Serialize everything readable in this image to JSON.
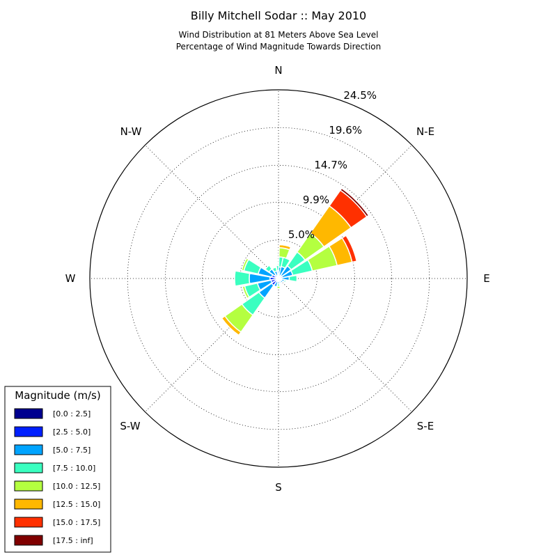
{
  "chart_data": {
    "type": "windrose",
    "title": "Billy Mitchell Sodar :: May 2010",
    "subtitle_lines": [
      "Wind Distribution at 81 Meters Above Sea Level",
      "Percentage of Wind Magnitude Towards Direction"
    ],
    "directions": [
      "N",
      "N-E",
      "E",
      "S-E",
      "S",
      "S-W",
      "W",
      "N-W"
    ],
    "radial_ticks": [
      {
        "value": 5.0,
        "label": "5.0%"
      },
      {
        "value": 9.9,
        "label": "9.9%"
      },
      {
        "value": 14.7,
        "label": "14.7%"
      },
      {
        "value": 19.6,
        "label": "19.6%"
      },
      {
        "value": 24.5,
        "label": "24.5%"
      }
    ],
    "rmax": 24.5,
    "grid": true,
    "legend": {
      "title": "Magnitude (m/s)",
      "placement": "bottom-left",
      "entries": [
        {
          "label": "[0.0 : 2.5]",
          "color": "#00008f"
        },
        {
          "label": "[2.5 : 5.0]",
          "color": "#0020ff"
        },
        {
          "label": "[5.0 : 7.5]",
          "color": "#00a4ff"
        },
        {
          "label": "[7.5 : 10.0]",
          "color": "#3affc0"
        },
        {
          "label": "[10.0 : 12.5]",
          "color": "#b4ff40"
        },
        {
          "label": "[12.5 : 15.0]",
          "color": "#ffb800"
        },
        {
          "label": "[15.0 : 17.5]",
          "color": "#ff3000"
        },
        {
          "label": "[17.5 : inf]",
          "color": "#800000"
        }
      ]
    },
    "sector_width_deg": 20,
    "series": [
      {
        "direction_deg": 0,
        "values": [
          0.1,
          0.2,
          0.7,
          0.7,
          0,
          0,
          0,
          0
        ]
      },
      {
        "direction_deg": 11.25,
        "values": [
          0.1,
          0.3,
          1.1,
          1.3,
          1.2,
          0.4,
          0.1,
          0
        ]
      },
      {
        "direction_deg": 22.5,
        "values": [
          0.1,
          0.2,
          1.3,
          1.2,
          0,
          0,
          0,
          0
        ]
      },
      {
        "direction_deg": 45,
        "values": [
          0.1,
          0.4,
          1.5,
          2.2,
          3.0,
          4.3,
          2.5,
          0.3
        ]
      },
      {
        "direction_deg": 67.5,
        "values": [
          0.1,
          0.4,
          1.4,
          2.6,
          3.3,
          2.0,
          0.6,
          0
        ]
      },
      {
        "direction_deg": 90,
        "values": [
          0.1,
          0.3,
          1.0,
          1.0,
          0,
          0,
          0,
          0
        ]
      },
      {
        "direction_deg": 112.5,
        "values": [
          0.2,
          0.2,
          0.4,
          0.2,
          0,
          0,
          0,
          0
        ]
      },
      {
        "direction_deg": 135,
        "values": [
          0.1,
          0.3,
          0.3,
          0,
          0,
          0,
          0,
          0
        ]
      },
      {
        "direction_deg": 157.5,
        "values": [
          0.1,
          0.2,
          0.3,
          0,
          0,
          0,
          0,
          0
        ]
      },
      {
        "direction_deg": 180,
        "values": [
          0.1,
          0.2,
          0.4,
          0.3,
          0.3,
          0,
          0,
          0
        ]
      },
      {
        "direction_deg": 202.5,
        "values": [
          0.1,
          0.3,
          0.7,
          0,
          0,
          0,
          0,
          0
        ]
      },
      {
        "direction_deg": 225,
        "values": [
          0.2,
          0.9,
          2.0,
          2.7,
          2.7,
          0.5,
          0,
          0
        ]
      },
      {
        "direction_deg": 247.5,
        "values": [
          0.2,
          0.8,
          1.8,
          1.7,
          0.3,
          0,
          0,
          0
        ]
      },
      {
        "direction_deg": 270,
        "values": [
          0.2,
          0.9,
          2.7,
          1.9,
          0,
          0,
          0,
          0
        ]
      },
      {
        "direction_deg": 292.5,
        "values": [
          0.2,
          0.7,
          1.8,
          1.9,
          0.3,
          0,
          0,
          0
        ]
      },
      {
        "direction_deg": 315,
        "values": [
          0.2,
          0.4,
          0.9,
          0.6,
          0,
          0,
          0,
          0
        ]
      },
      {
        "direction_deg": 337.5,
        "values": [
          0.1,
          0.3,
          0.6,
          0.5,
          0,
          0,
          0,
          0
        ]
      }
    ]
  }
}
